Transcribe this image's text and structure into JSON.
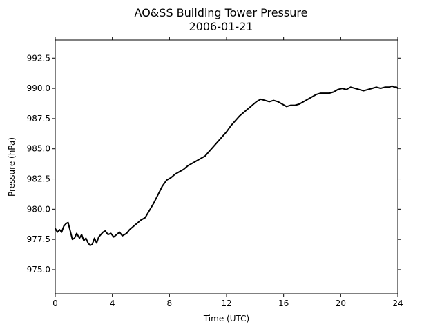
{
  "chart_data": {
    "type": "line",
    "title": "AO&SS Building Tower Pressure",
    "subtitle": "2006-01-21",
    "xlabel": "Time (UTC)",
    "ylabel": "Pressure (hPa)",
    "xlim": [
      0,
      24
    ],
    "ylim": [
      973.0,
      994.0
    ],
    "xticks": [
      0,
      4,
      8,
      12,
      16,
      20,
      24
    ],
    "xtick_labels": [
      "0",
      "4",
      "8",
      "12",
      "16",
      "20",
      "24"
    ],
    "yticks": [
      975.0,
      977.5,
      980.0,
      982.5,
      985.0,
      987.5,
      990.0,
      992.5
    ],
    "ytick_labels": [
      "975.0",
      "977.5",
      "980.0",
      "982.5",
      "985.0",
      "987.5",
      "990.0",
      "992.5"
    ],
    "grid": false,
    "line_color": "#000000",
    "series": [
      {
        "x": [
          0.0,
          0.15,
          0.3,
          0.45,
          0.6,
          0.75,
          0.9,
          1.05,
          1.2,
          1.35,
          1.5,
          1.7,
          1.85,
          2.0,
          2.15,
          2.3,
          2.45,
          2.6,
          2.75,
          2.9,
          3.05,
          3.2,
          3.35,
          3.5,
          3.7,
          3.9,
          4.1,
          4.3,
          4.5,
          4.7,
          4.85,
          5.0,
          5.2,
          5.4,
          5.6,
          5.8,
          6.0,
          6.3,
          6.6,
          6.9,
          7.2,
          7.5,
          7.8,
          8.1,
          8.4,
          8.7,
          9.0,
          9.3,
          9.6,
          9.9,
          10.2,
          10.5,
          10.8,
          11.1,
          11.4,
          11.7,
          12.0,
          12.3,
          12.6,
          12.9,
          13.2,
          13.5,
          13.8,
          14.1,
          14.4,
          14.7,
          15.0,
          15.3,
          15.6,
          15.9,
          16.2,
          16.5,
          16.8,
          17.1,
          17.4,
          17.7,
          18.0,
          18.3,
          18.6,
          18.9,
          19.2,
          19.5,
          19.8,
          20.1,
          20.4,
          20.7,
          21.0,
          21.3,
          21.6,
          21.9,
          22.2,
          22.5,
          22.8,
          23.1,
          23.4,
          23.6,
          23.75,
          23.9,
          24.0
        ],
        "y": [
          978.4,
          978.1,
          978.3,
          978.1,
          978.6,
          978.8,
          978.9,
          978.2,
          977.5,
          977.6,
          978.0,
          977.6,
          977.9,
          977.4,
          977.6,
          977.2,
          977.0,
          977.1,
          977.6,
          977.2,
          977.7,
          977.9,
          978.1,
          978.2,
          977.9,
          978.0,
          977.7,
          977.9,
          978.1,
          977.8,
          977.9,
          978.0,
          978.3,
          978.5,
          978.7,
          978.9,
          979.1,
          979.3,
          979.9,
          980.5,
          981.2,
          981.9,
          982.4,
          982.6,
          982.9,
          983.1,
          983.3,
          983.6,
          983.8,
          984.0,
          984.2,
          984.4,
          984.8,
          985.2,
          985.6,
          986.0,
          986.4,
          986.9,
          987.3,
          987.7,
          988.0,
          988.3,
          988.6,
          988.9,
          989.1,
          989.0,
          988.9,
          989.0,
          988.9,
          988.7,
          988.5,
          988.6,
          988.6,
          988.7,
          988.9,
          989.1,
          989.3,
          989.5,
          989.6,
          989.6,
          989.6,
          989.7,
          989.9,
          990.0,
          989.9,
          990.1,
          990.0,
          989.9,
          989.8,
          989.9,
          990.0,
          990.1,
          990.0,
          990.1,
          990.1,
          990.2,
          990.1,
          990.1,
          990.0
        ]
      }
    ]
  }
}
